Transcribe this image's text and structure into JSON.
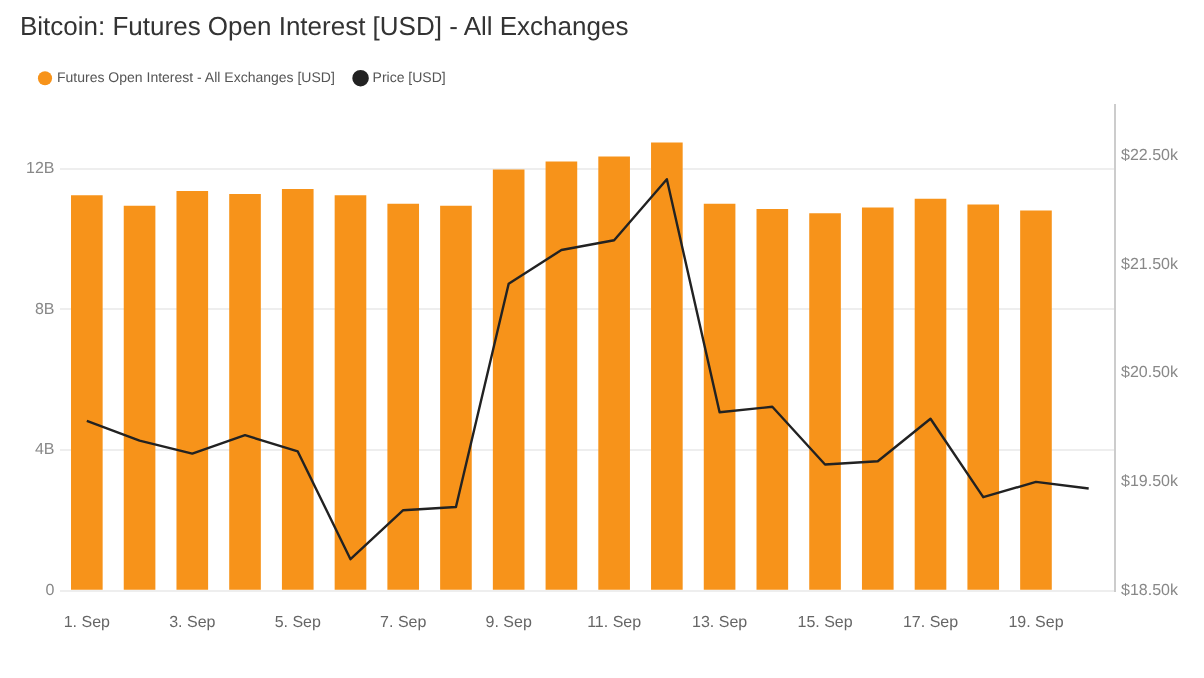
{
  "chart_data": {
    "type": "bar",
    "title": "Bitcoin: Futures Open Interest [USD] - All Exchanges",
    "categories": [
      "1. Sep",
      null,
      "3. Sep",
      null,
      "5. Sep",
      null,
      "7. Sep",
      null,
      "9. Sep",
      null,
      "11. Sep",
      null,
      "13. Sep",
      null,
      "15. Sep",
      null,
      "17. Sep",
      null,
      "19. Sep",
      null
    ],
    "series": [
      {
        "name": "Futures Open Interest - All Exchanges [USD]",
        "color": "#f7931a",
        "values": [
          11.24,
          10.94,
          11.36,
          11.28,
          11.42,
          11.24,
          11.0,
          10.94,
          11.97,
          12.2,
          12.34,
          12.74,
          11.0,
          10.85,
          10.73,
          10.89,
          11.14,
          10.98,
          10.81,
          null
        ]
      },
      {
        "name": "Price [USD]",
        "type": "line",
        "axis": "y2",
        "color": "#222222",
        "values": [
          20.06,
          19.88,
          19.76,
          19.93,
          19.78,
          18.79,
          19.24,
          19.27,
          21.32,
          21.63,
          21.72,
          22.28,
          20.14,
          20.19,
          19.66,
          19.69,
          20.08,
          19.36,
          19.5,
          19.44
        ]
      }
    ],
    "ylim": [
      0,
      13.8
    ],
    "yticks": [
      {
        "value": 0,
        "label": "0"
      },
      {
        "value": 4,
        "label": "4B"
      },
      {
        "value": 8,
        "label": "8B"
      },
      {
        "value": 12,
        "label": "12B"
      }
    ],
    "y2lim": [
      18.5,
      22.96
    ],
    "y2ticks": [
      {
        "value": 18.5,
        "label": "$18.50k"
      },
      {
        "value": 19.5,
        "label": "$19.50k"
      },
      {
        "value": 20.5,
        "label": "$20.50k"
      },
      {
        "value": 21.5,
        "label": "$21.50k"
      },
      {
        "value": 22.5,
        "label": "$22.50k"
      }
    ],
    "grid": "y",
    "legend": "top left",
    "marker": "none",
    "line_style": "solid"
  }
}
